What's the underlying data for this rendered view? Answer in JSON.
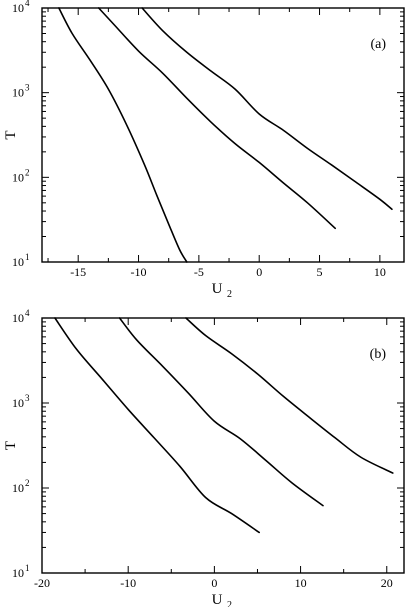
{
  "chart_data": [
    {
      "type": "line",
      "panel_label": "(a)",
      "xlabel": "U",
      "xlabel_sub": "2",
      "ylabel": "T",
      "y_scale": "log",
      "xlim": [
        -18,
        12
      ],
      "ylim": [
        10,
        10000
      ],
      "x_ticks": [
        -15,
        -10,
        -5,
        0,
        5,
        10
      ],
      "x_tick_labels": [
        "-15",
        "-10",
        "-5",
        "0",
        "5",
        "10"
      ],
      "y_ticks": [
        10,
        100,
        1000,
        10000
      ],
      "y_tick_labels": [
        {
          "base": "10",
          "exp": "1"
        },
        {
          "base": "10",
          "exp": "2"
        },
        {
          "base": "10",
          "exp": "3"
        },
        {
          "base": "10",
          "exp": "4"
        }
      ],
      "grid": false,
      "legend": "none",
      "series": [
        {
          "x": [
            -16.6,
            -15.5,
            -14.0,
            -12.5,
            -11.0,
            -9.5,
            -8.5,
            -7.5,
            -6.6,
            -6.0
          ],
          "y": [
            10000,
            5000,
            2400,
            1100,
            420,
            140,
            62,
            28,
            14,
            10
          ]
        },
        {
          "x": [
            -13.3,
            -12.0,
            -10.0,
            -8.0,
            -6.0,
            -4.0,
            -2.0,
            0.0,
            2.0,
            4.0,
            6.3
          ],
          "y": [
            10000,
            6300,
            3100,
            1700,
            860,
            450,
            250,
            150,
            86,
            50,
            25
          ]
        },
        {
          "x": [
            -9.7,
            -8.0,
            -6.0,
            -4.0,
            -2.0,
            0.0,
            2.0,
            4.0,
            6.0,
            8.0,
            10.0,
            11.0
          ],
          "y": [
            10000,
            5400,
            3000,
            1800,
            1100,
            560,
            360,
            220,
            140,
            88,
            55,
            42
          ]
        }
      ]
    },
    {
      "type": "line",
      "panel_label": "(b)",
      "xlabel": "U",
      "xlabel_sub": "2",
      "ylabel": "T",
      "y_scale": "log",
      "xlim": [
        -20,
        22
      ],
      "ylim": [
        10,
        10000
      ],
      "x_ticks": [
        -20,
        -10,
        0,
        10,
        20
      ],
      "x_tick_labels": [
        "-20",
        "-10",
        "0",
        "10",
        "20"
      ],
      "y_ticks": [
        10,
        100,
        1000,
        10000
      ],
      "y_tick_labels": [
        {
          "base": "10",
          "exp": "1"
        },
        {
          "base": "10",
          "exp": "2"
        },
        {
          "base": "10",
          "exp": "3"
        },
        {
          "base": "10",
          "exp": "4"
        }
      ],
      "grid": false,
      "legend": "none",
      "series": [
        {
          "x": [
            -18.5,
            -16.0,
            -13.0,
            -10.0,
            -7.0,
            -4.0,
            -1.0,
            2.0,
            5.2
          ],
          "y": [
            10000,
            4300,
            1900,
            840,
            390,
            180,
            77,
            50,
            30
          ]
        },
        {
          "x": [
            -11.0,
            -9.0,
            -6.0,
            -3.0,
            0.0,
            3.0,
            6.0,
            9.0,
            12.6
          ],
          "y": [
            10000,
            5500,
            2700,
            1300,
            610,
            380,
            210,
            115,
            62
          ]
        },
        {
          "x": [
            -3.3,
            -1.0,
            2.0,
            5.0,
            8.0,
            11.0,
            14.0,
            17.0,
            20.7
          ],
          "y": [
            10000,
            6200,
            3800,
            2200,
            1200,
            680,
            390,
            230,
            150
          ]
        }
      ]
    }
  ]
}
